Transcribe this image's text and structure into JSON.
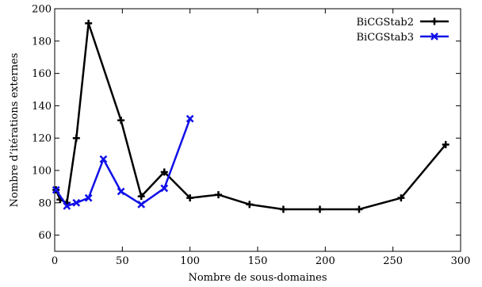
{
  "chart_data": {
    "type": "line",
    "xlabel": "Nombre de sous-domaines",
    "ylabel": "Nombre d’itérations externes",
    "xlim": [
      0,
      300
    ],
    "ylim": [
      50,
      200
    ],
    "xticks": [
      0,
      50,
      100,
      150,
      200,
      250,
      300
    ],
    "yticks": [
      60,
      80,
      100,
      120,
      140,
      160,
      180,
      200
    ],
    "grid": false,
    "legend_position": "top-right",
    "series": [
      {
        "name": "BiCGStab2",
        "color": "#000000",
        "marker": "plus",
        "x": [
          1,
          4,
          9,
          16,
          25,
          49,
          64,
          81,
          100,
          121,
          144,
          169,
          196,
          225,
          256,
          289
        ],
        "y": [
          88,
          82,
          80,
          120,
          191,
          131,
          84,
          99,
          83,
          85,
          79,
          76,
          76,
          76,
          83,
          116
        ]
      },
      {
        "name": "BiCGStab3",
        "color": "#1010e8",
        "marker": "x",
        "x": [
          1,
          9,
          16,
          25,
          36,
          49,
          64,
          81,
          100
        ],
        "y": [
          88,
          78,
          80,
          83,
          107,
          87,
          79,
          89,
          132
        ]
      }
    ]
  }
}
